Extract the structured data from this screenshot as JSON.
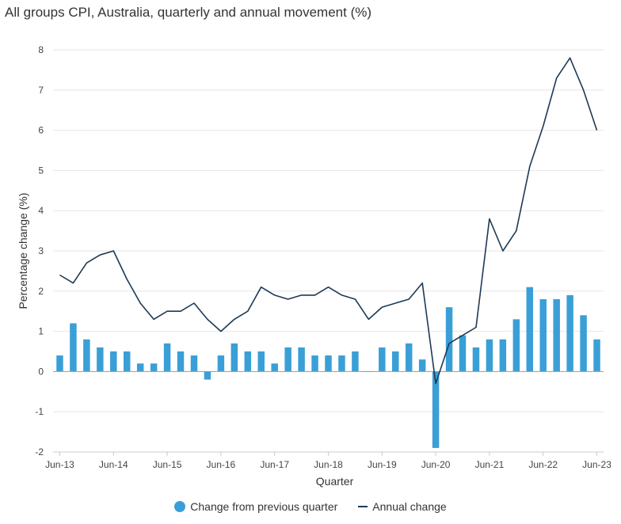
{
  "chart_data": {
    "type": "bar+line",
    "title": "All groups CPI, Australia, quarterly and annual movement (%)",
    "xlabel": "Quarter",
    "ylabel": "Percentage change (%)",
    "ylim": [
      -2,
      8
    ],
    "yticks": [
      -2,
      -1,
      0,
      1,
      2,
      3,
      4,
      5,
      6,
      7,
      8
    ],
    "categories": [
      "Jun-13",
      "Sep-13",
      "Dec-13",
      "Mar-14",
      "Jun-14",
      "Sep-14",
      "Dec-14",
      "Mar-15",
      "Jun-15",
      "Sep-15",
      "Dec-15",
      "Mar-16",
      "Jun-16",
      "Sep-16",
      "Dec-16",
      "Mar-17",
      "Jun-17",
      "Sep-17",
      "Dec-17",
      "Mar-18",
      "Jun-18",
      "Sep-18",
      "Dec-18",
      "Mar-19",
      "Jun-19",
      "Sep-19",
      "Dec-19",
      "Mar-20",
      "Jun-20",
      "Sep-20",
      "Dec-20",
      "Mar-21",
      "Jun-21",
      "Sep-21",
      "Dec-21",
      "Mar-22",
      "Jun-22",
      "Sep-22",
      "Dec-22",
      "Mar-23",
      "Jun-23"
    ],
    "xtick_labels": [
      "Jun-13",
      "Jun-14",
      "Jun-15",
      "Jun-16",
      "Jun-17",
      "Jun-18",
      "Jun-19",
      "Jun-20",
      "Jun-21",
      "Jun-22",
      "Jun-23"
    ],
    "series": [
      {
        "name": "Change from previous quarter",
        "type": "bar",
        "color": "#3a9fd6",
        "values": [
          0.4,
          1.2,
          0.8,
          0.6,
          0.5,
          0.5,
          0.2,
          0.2,
          0.7,
          0.5,
          0.4,
          -0.2,
          0.4,
          0.7,
          0.5,
          0.5,
          0.2,
          0.6,
          0.6,
          0.4,
          0.4,
          0.4,
          0.5,
          0.0,
          0.6,
          0.5,
          0.7,
          0.3,
          -1.9,
          1.6,
          0.9,
          0.6,
          0.8,
          0.8,
          1.3,
          2.1,
          1.8,
          1.8,
          1.9,
          1.4,
          0.8
        ]
      },
      {
        "name": "Annual change",
        "type": "line",
        "color": "#1d3a55",
        "values": [
          2.4,
          2.2,
          2.7,
          2.9,
          3.0,
          2.3,
          1.7,
          1.3,
          1.5,
          1.5,
          1.7,
          1.3,
          1.0,
          1.3,
          1.5,
          2.1,
          1.9,
          1.8,
          1.9,
          1.9,
          2.1,
          1.9,
          1.8,
          1.3,
          1.6,
          1.7,
          1.8,
          2.2,
          -0.3,
          0.7,
          0.9,
          1.1,
          3.8,
          3.0,
          3.5,
          5.1,
          6.1,
          7.3,
          7.8,
          7.0,
          6.0
        ]
      }
    ],
    "legend_position": "bottom-center"
  },
  "legend": {
    "bar_label": "Change from previous quarter",
    "line_label": "Annual change",
    "bar_color": "#3a9fd6",
    "line_color": "#1d3a55"
  }
}
